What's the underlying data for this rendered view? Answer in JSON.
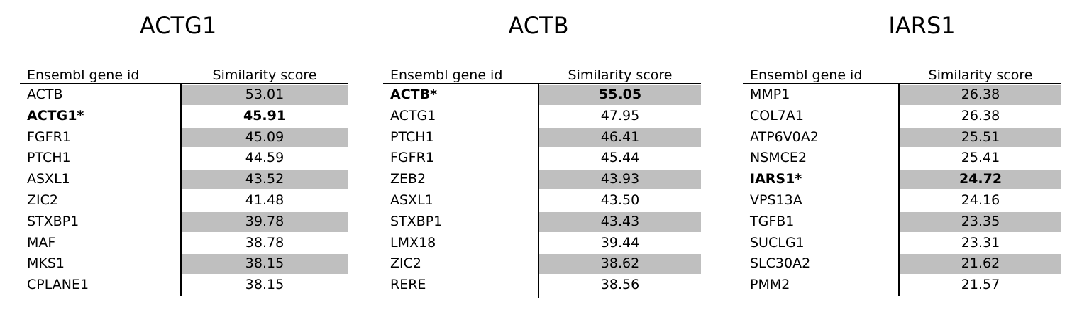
{
  "panels": [
    {
      "title": "ACTG1",
      "columns": {
        "id": "Ensembl gene id",
        "score": "Similarity score"
      },
      "rows": [
        {
          "gene": "ACTB",
          "score": "53.01",
          "shaded": true,
          "bold": false
        },
        {
          "gene": "ACTG1*",
          "score": "45.91",
          "shaded": false,
          "bold": true
        },
        {
          "gene": "FGFR1",
          "score": "45.09",
          "shaded": true,
          "bold": false
        },
        {
          "gene": "PTCH1",
          "score": "44.59",
          "shaded": false,
          "bold": false
        },
        {
          "gene": "ASXL1",
          "score": "43.52",
          "shaded": true,
          "bold": false
        },
        {
          "gene": "ZIC2",
          "score": "41.48",
          "shaded": false,
          "bold": false
        },
        {
          "gene": "STXBP1",
          "score": "39.78",
          "shaded": true,
          "bold": false
        },
        {
          "gene": "MAF",
          "score": "38.78",
          "shaded": false,
          "bold": false
        },
        {
          "gene": "MKS1",
          "score": "38.15",
          "shaded": true,
          "bold": false
        },
        {
          "gene": "CPLANE1",
          "score": "38.15",
          "shaded": false,
          "bold": false
        }
      ]
    },
    {
      "title": "ACTB",
      "columns": {
        "id": "Ensembl gene id",
        "score": "Similarity score"
      },
      "rows": [
        {
          "gene": "ACTB*",
          "score": "55.05",
          "shaded": true,
          "bold": true
        },
        {
          "gene": "ACTG1",
          "score": "47.95",
          "shaded": false,
          "bold": false
        },
        {
          "gene": "PTCH1",
          "score": "46.41",
          "shaded": true,
          "bold": false
        },
        {
          "gene": "FGFR1",
          "score": "45.44",
          "shaded": false,
          "bold": false
        },
        {
          "gene": "ZEB2",
          "score": "43.93",
          "shaded": true,
          "bold": false
        },
        {
          "gene": "ASXL1",
          "score": "43.50",
          "shaded": false,
          "bold": false
        },
        {
          "gene": "STXBP1",
          "score": "43.43",
          "shaded": true,
          "bold": false
        },
        {
          "gene": "LMX18",
          "score": "39.44",
          "shaded": false,
          "bold": false
        },
        {
          "gene": "ZIC2",
          "score": "38.62",
          "shaded": true,
          "bold": false
        },
        {
          "gene": "RERE",
          "score": "38.56",
          "shaded": false,
          "bold": false
        }
      ]
    },
    {
      "title": "IARS1",
      "columns": {
        "id": "Ensembl gene id",
        "score": "Similarity score"
      },
      "rows": [
        {
          "gene": "MMP1",
          "score": "26.38",
          "shaded": true,
          "bold": false
        },
        {
          "gene": "COL7A1",
          "score": "26.38",
          "shaded": false,
          "bold": false
        },
        {
          "gene": "ATP6V0A2",
          "score": "25.51",
          "shaded": true,
          "bold": false
        },
        {
          "gene": "NSMCE2",
          "score": "25.41",
          "shaded": false,
          "bold": false
        },
        {
          "gene": "IARS1*",
          "score": "24.72",
          "shaded": true,
          "bold": true
        },
        {
          "gene": "VPS13A",
          "score": "24.16",
          "shaded": false,
          "bold": false
        },
        {
          "gene": "TGFB1",
          "score": "23.35",
          "shaded": true,
          "bold": false
        },
        {
          "gene": "SUCLG1",
          "score": "23.31",
          "shaded": false,
          "bold": false
        },
        {
          "gene": "SLC30A2",
          "score": "21.62",
          "shaded": true,
          "bold": false
        },
        {
          "gene": "PMM2",
          "score": "21.57",
          "shaded": false,
          "bold": false
        }
      ]
    }
  ]
}
